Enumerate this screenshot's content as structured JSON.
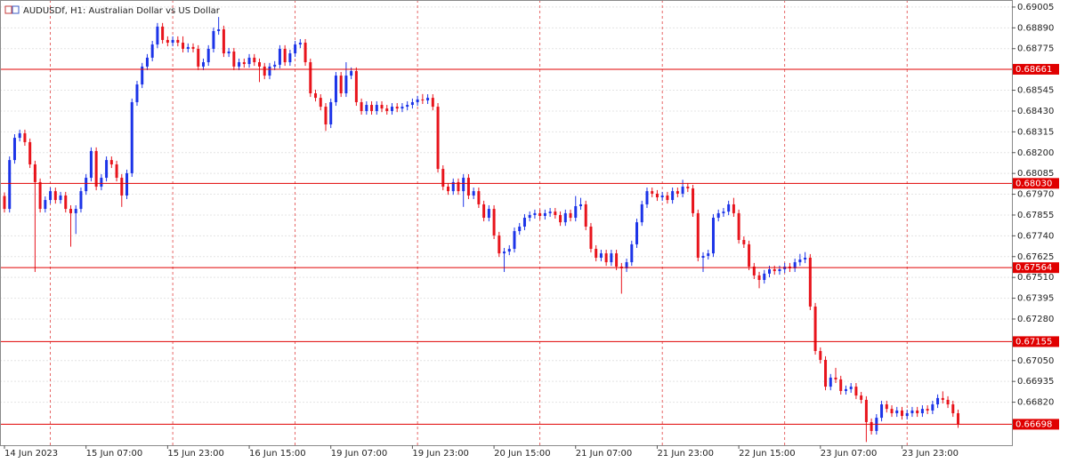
{
  "chart_data": {
    "type": "candlestick",
    "title": "AUDUSDf, H1:  Australian Dollar vs US Dollar",
    "up_color": "#1c34e8",
    "down_color": "#e8141c",
    "level_color": "#e00000",
    "grid": true,
    "ylim": [
      0.66587,
      0.69044
    ],
    "yticks": [
      0.69005,
      {
        "value": 0.6889,
        "label": "0.68890"
      },
      0.68775,
      0.68545,
      {
        "value": 0.6843,
        "label": "0.68430"
      },
      0.68315,
      {
        "value": 0.682,
        "label": "0.68200"
      },
      0.68085,
      {
        "value": 0.6797,
        "label": "0.67970"
      },
      0.67855,
      {
        "value": 0.6774,
        "label": "0.67740"
      },
      0.67625,
      {
        "value": 0.6751,
        "label": "0.67510"
      },
      0.67395,
      {
        "value": 0.6728,
        "label": "0.67280"
      },
      {
        "value": 0.6705,
        "label": "0.67050"
      },
      0.66935,
      {
        "value": 0.6682,
        "label": "0.66820"
      }
    ],
    "levels": [
      0.68661,
      {
        "value": 0.6803,
        "label": "0.68030"
      },
      0.67564,
      0.67155,
      0.66698
    ],
    "categories": [
      "14 Jun 2023",
      null,
      null,
      null,
      null,
      null,
      null,
      null,
      null,
      null,
      null,
      null,
      null,
      null,
      null,
      null,
      "15 Jun 07:00",
      null,
      null,
      null,
      null,
      null,
      null,
      null,
      null,
      null,
      null,
      null,
      null,
      null,
      null,
      null,
      "15 Jun 23:00",
      null,
      null,
      null,
      null,
      null,
      null,
      null,
      null,
      null,
      null,
      null,
      null,
      null,
      null,
      null,
      "16 Jun 15:00",
      null,
      null,
      null,
      null,
      null,
      null,
      null,
      null,
      null,
      null,
      null,
      null,
      null,
      null,
      null,
      "19 Jun 07:00",
      null,
      null,
      null,
      null,
      null,
      null,
      null,
      null,
      null,
      null,
      null,
      null,
      null,
      null,
      null,
      "19 Jun 23:00",
      null,
      null,
      null,
      null,
      null,
      null,
      null,
      null,
      null,
      null,
      null,
      null,
      null,
      null,
      null,
      "20 Jun 15:00",
      null,
      null,
      null,
      null,
      null,
      null,
      null,
      null,
      null,
      null,
      null,
      null,
      null,
      null,
      null,
      "21 Jun 07:00",
      null,
      null,
      null,
      null,
      null,
      null,
      null,
      null,
      null,
      null,
      null,
      null,
      null,
      null,
      null,
      "21 Jun 23:00",
      null,
      null,
      null,
      null,
      null,
      null,
      null,
      null,
      null,
      null,
      null,
      null,
      null,
      null,
      null,
      "22 Jun 15:00",
      null,
      null,
      null,
      null,
      null,
      null,
      null,
      null,
      null,
      null,
      null,
      null,
      null,
      null,
      null,
      "23 Jun 07:00",
      null,
      null,
      null,
      null,
      null,
      null,
      null,
      null,
      null,
      null,
      null,
      null,
      null,
      null,
      null,
      "23 Jun 23:00",
      null,
      null,
      null,
      null,
      null,
      null,
      null,
      null,
      null,
      null,
      null
    ],
    "ohlc": [
      [
        0.6796,
        0.6798,
        0.67869,
        0.67889
      ],
      [
        0.67889,
        0.68179,
        0.67869,
        0.68159
      ],
      [
        0.68159,
        0.68302,
        0.68139,
        0.68282
      ],
      [
        0.68282,
        0.68327,
        0.68262,
        0.68307
      ],
      [
        0.68307,
        0.68327,
        0.68238,
        0.68258
      ],
      [
        0.68258,
        0.68278,
        0.68115,
        0.68135
      ],
      [
        0.68135,
        0.68155,
        0.6754,
        0.68037
      ],
      [
        0.68037,
        0.68057,
        0.67869,
        0.67889
      ],
      [
        0.67889,
        0.67958,
        0.67869,
        0.67938
      ],
      [
        0.67938,
        0.68007,
        0.67918,
        0.67987
      ],
      [
        0.67987,
        0.68007,
        0.67918,
        0.67938
      ],
      [
        0.67938,
        0.67983,
        0.67918,
        0.67963
      ],
      [
        0.67963,
        0.67983,
        0.67869,
        0.67889
      ],
      [
        0.67889,
        0.67909,
        0.6768,
        0.67865
      ],
      [
        0.67865,
        0.67909,
        0.6775,
        0.67889
      ],
      [
        0.67889,
        0.68007,
        0.67869,
        0.67987
      ],
      [
        0.67987,
        0.68081,
        0.67967,
        0.68061
      ],
      [
        0.68061,
        0.68229,
        0.68041,
        0.68209
      ],
      [
        0.68209,
        0.68229,
        0.67992,
        0.68012
      ],
      [
        0.68012,
        0.68081,
        0.67992,
        0.68061
      ],
      [
        0.68061,
        0.68179,
        0.68041,
        0.68159
      ],
      [
        0.68159,
        0.68179,
        0.68115,
        0.68135
      ],
      [
        0.68135,
        0.68155,
        0.68041,
        0.68061
      ],
      [
        0.68061,
        0.68081,
        0.679,
        0.67963
      ],
      [
        0.67963,
        0.68106,
        0.67943,
        0.68086
      ],
      [
        0.68086,
        0.68499,
        0.68066,
        0.68479
      ],
      [
        0.68479,
        0.68597,
        0.68459,
        0.68577
      ],
      [
        0.68577,
        0.68696,
        0.68557,
        0.68676
      ],
      [
        0.68676,
        0.68745,
        0.68656,
        0.68725
      ],
      [
        0.68725,
        0.68818,
        0.68705,
        0.68798
      ],
      [
        0.68798,
        0.68917,
        0.68778,
        0.68897
      ],
      [
        0.68897,
        0.68917,
        0.68803,
        0.68823
      ],
      [
        0.68823,
        0.68843,
        0.68788,
        0.68808
      ],
      [
        0.68808,
        0.68843,
        0.68788,
        0.68823
      ],
      [
        0.68823,
        0.68843,
        0.68788,
        0.68808
      ],
      [
        0.68808,
        0.68843,
        0.68754,
        0.68774
      ],
      [
        0.68774,
        0.68804,
        0.68754,
        0.68784
      ],
      [
        0.68784,
        0.68804,
        0.68754,
        0.68774
      ],
      [
        0.68774,
        0.68794,
        0.68656,
        0.68676
      ],
      [
        0.68676,
        0.6872,
        0.68656,
        0.687
      ],
      [
        0.687,
        0.68794,
        0.6868,
        0.68774
      ],
      [
        0.68774,
        0.68892,
        0.68754,
        0.68872
      ],
      [
        0.68872,
        0.6895,
        0.68852,
        0.68882
      ],
      [
        0.68882,
        0.68902,
        0.68729,
        0.68749
      ],
      [
        0.68749,
        0.68779,
        0.68729,
        0.68759
      ],
      [
        0.68759,
        0.68779,
        0.68656,
        0.68676
      ],
      [
        0.68676,
        0.6872,
        0.68656,
        0.687
      ],
      [
        0.687,
        0.6872,
        0.6867,
        0.6869
      ],
      [
        0.6869,
        0.68745,
        0.6867,
        0.68725
      ],
      [
        0.68725,
        0.68745,
        0.6868,
        0.687
      ],
      [
        0.687,
        0.6872,
        0.6859,
        0.68676
      ],
      [
        0.68676,
        0.68696,
        0.68606,
        0.68626
      ],
      [
        0.68626,
        0.68696,
        0.68606,
        0.68676
      ],
      [
        0.68676,
        0.68706,
        0.68656,
        0.68686
      ],
      [
        0.68686,
        0.68794,
        0.68666,
        0.68774
      ],
      [
        0.68774,
        0.68794,
        0.6868,
        0.687
      ],
      [
        0.687,
        0.68769,
        0.6868,
        0.68749
      ],
      [
        0.68749,
        0.68818,
        0.68729,
        0.68798
      ],
      [
        0.68798,
        0.68828,
        0.68778,
        0.68808
      ],
      [
        0.68808,
        0.68828,
        0.6868,
        0.687
      ],
      [
        0.687,
        0.6872,
        0.68508,
        0.68528
      ],
      [
        0.68528,
        0.68548,
        0.68483,
        0.68503
      ],
      [
        0.68503,
        0.68523,
        0.68434,
        0.68454
      ],
      [
        0.68454,
        0.68474,
        0.6832,
        0.68356
      ],
      [
        0.68356,
        0.68499,
        0.68336,
        0.68479
      ],
      [
        0.68479,
        0.68646,
        0.68459,
        0.68626
      ],
      [
        0.68626,
        0.68646,
        0.68508,
        0.68528
      ],
      [
        0.68528,
        0.687,
        0.68508,
        0.68626
      ],
      [
        0.68626,
        0.68671,
        0.68606,
        0.68651
      ],
      [
        0.68651,
        0.68671,
        0.68459,
        0.68479
      ],
      [
        0.68479,
        0.68499,
        0.6841,
        0.6843
      ],
      [
        0.6843,
        0.68484,
        0.6841,
        0.68464
      ],
      [
        0.68464,
        0.68484,
        0.6841,
        0.6843
      ],
      [
        0.6843,
        0.68484,
        0.6841,
        0.68464
      ],
      [
        0.68464,
        0.68484,
        0.68424,
        0.68444
      ],
      [
        0.68444,
        0.68464,
        0.6841,
        0.6843
      ],
      [
        0.6843,
        0.68474,
        0.6841,
        0.68454
      ],
      [
        0.68454,
        0.68474,
        0.68424,
        0.68444
      ],
      [
        0.68444,
        0.68474,
        0.68424,
        0.68454
      ],
      [
        0.68454,
        0.68484,
        0.68434,
        0.68464
      ],
      [
        0.68464,
        0.68499,
        0.68444,
        0.68479
      ],
      [
        0.68479,
        0.68514,
        0.68459,
        0.68494
      ],
      [
        0.68494,
        0.68524,
        0.68469,
        0.68489
      ],
      [
        0.68489,
        0.68523,
        0.68469,
        0.68503
      ],
      [
        0.68503,
        0.68523,
        0.68434,
        0.68454
      ],
      [
        0.68454,
        0.68474,
        0.6809,
        0.6811
      ],
      [
        0.6811,
        0.6813,
        0.67992,
        0.68012
      ],
      [
        0.68012,
        0.68032,
        0.67967,
        0.67987
      ],
      [
        0.67987,
        0.68057,
        0.67967,
        0.68037
      ],
      [
        0.68037,
        0.68057,
        0.67967,
        0.67987
      ],
      [
        0.67987,
        0.68081,
        0.679,
        0.68061
      ],
      [
        0.68061,
        0.68081,
        0.67943,
        0.67963
      ],
      [
        0.67963,
        0.68007,
        0.67943,
        0.67987
      ],
      [
        0.67987,
        0.68007,
        0.67894,
        0.67914
      ],
      [
        0.67914,
        0.67934,
        0.6782,
        0.6784
      ],
      [
        0.6784,
        0.67909,
        0.6782,
        0.67889
      ],
      [
        0.67889,
        0.67909,
        0.67722,
        0.67742
      ],
      [
        0.67742,
        0.67762,
        0.67623,
        0.67643
      ],
      [
        0.67643,
        0.67673,
        0.6754,
        0.67653
      ],
      [
        0.67653,
        0.67688,
        0.67633,
        0.67668
      ],
      [
        0.67668,
        0.67786,
        0.67648,
        0.67766
      ],
      [
        0.67766,
        0.67811,
        0.67746,
        0.67791
      ],
      [
        0.67791,
        0.6786,
        0.67771,
        0.6784
      ],
      [
        0.6784,
        0.67875,
        0.6782,
        0.67855
      ],
      [
        0.67855,
        0.67885,
        0.67835,
        0.67865
      ],
      [
        0.67865,
        0.67885,
        0.6783,
        0.6785
      ],
      [
        0.6785,
        0.67885,
        0.6783,
        0.67865
      ],
      [
        0.67865,
        0.67894,
        0.67845,
        0.67874
      ],
      [
        0.67874,
        0.67894,
        0.67835,
        0.67855
      ],
      [
        0.67855,
        0.67875,
        0.67795,
        0.67815
      ],
      [
        0.67815,
        0.67885,
        0.67795,
        0.67865
      ],
      [
        0.67865,
        0.67885,
        0.6782,
        0.6784
      ],
      [
        0.6784,
        0.6796,
        0.6782,
        0.67904
      ],
      [
        0.67904,
        0.6795,
        0.67884,
        0.67914
      ],
      [
        0.67914,
        0.67934,
        0.67771,
        0.67791
      ],
      [
        0.67791,
        0.67811,
        0.67648,
        0.67668
      ],
      [
        0.67668,
        0.67688,
        0.67599,
        0.67619
      ],
      [
        0.67619,
        0.67663,
        0.67599,
        0.67643
      ],
      [
        0.67643,
        0.67663,
        0.67574,
        0.67594
      ],
      [
        0.67594,
        0.67663,
        0.67574,
        0.67643
      ],
      [
        0.67643,
        0.67663,
        0.6755,
        0.6757
      ],
      [
        0.6757,
        0.6759,
        0.6742,
        0.6756
      ],
      [
        0.6756,
        0.67614,
        0.6754,
        0.67594
      ],
      [
        0.67594,
        0.67713,
        0.67574,
        0.67693
      ],
      [
        0.67693,
        0.67835,
        0.67673,
        0.67815
      ],
      [
        0.67815,
        0.67934,
        0.67795,
        0.67914
      ],
      [
        0.67914,
        0.68007,
        0.67894,
        0.67987
      ],
      [
        0.67987,
        0.68007,
        0.67953,
        0.67973
      ],
      [
        0.67973,
        0.67993,
        0.67933,
        0.67953
      ],
      [
        0.67953,
        0.67983,
        0.67933,
        0.67963
      ],
      [
        0.67963,
        0.67983,
        0.67918,
        0.67938
      ],
      [
        0.67938,
        0.68007,
        0.67918,
        0.67987
      ],
      [
        0.67987,
        0.68007,
        0.67953,
        0.67973
      ],
      [
        0.67973,
        0.6805,
        0.67953,
        0.68012
      ],
      [
        0.68012,
        0.68032,
        0.67982,
        0.68002
      ],
      [
        0.68002,
        0.68022,
        0.67845,
        0.67865
      ],
      [
        0.67865,
        0.67885,
        0.67599,
        0.67619
      ],
      [
        0.67619,
        0.67649,
        0.6754,
        0.67629
      ],
      [
        0.67629,
        0.67663,
        0.67609,
        0.67643
      ],
      [
        0.67643,
        0.6786,
        0.67623,
        0.6784
      ],
      [
        0.6784,
        0.67885,
        0.6782,
        0.67865
      ],
      [
        0.67865,
        0.67894,
        0.67845,
        0.67874
      ],
      [
        0.67874,
        0.67934,
        0.67854,
        0.67914
      ],
      [
        0.67914,
        0.6795,
        0.67845,
        0.67865
      ],
      [
        0.67865,
        0.67885,
        0.67697,
        0.67717
      ],
      [
        0.67717,
        0.67737,
        0.67673,
        0.67693
      ],
      [
        0.67693,
        0.67713,
        0.6755,
        0.6757
      ],
      [
        0.6757,
        0.6759,
        0.67501,
        0.67521
      ],
      [
        0.67521,
        0.67541,
        0.6745,
        0.67496
      ],
      [
        0.67496,
        0.67551,
        0.67476,
        0.67531
      ],
      [
        0.67531,
        0.67575,
        0.67511,
        0.67555
      ],
      [
        0.67555,
        0.67575,
        0.67525,
        0.67545
      ],
      [
        0.67545,
        0.67575,
        0.67525,
        0.67555
      ],
      [
        0.67555,
        0.6759,
        0.67535,
        0.6757
      ],
      [
        0.6757,
        0.6759,
        0.6754,
        0.6756
      ],
      [
        0.6756,
        0.67614,
        0.6754,
        0.67594
      ],
      [
        0.67594,
        0.6764,
        0.67574,
        0.67609
      ],
      [
        0.67609,
        0.6765,
        0.67589,
        0.67619
      ],
      [
        0.67619,
        0.67639,
        0.67329,
        0.67349
      ],
      [
        0.67349,
        0.67369,
        0.67083,
        0.67103
      ],
      [
        0.67103,
        0.67123,
        0.67034,
        0.67054
      ],
      [
        0.67054,
        0.67074,
        0.66886,
        0.66906
      ],
      [
        0.66906,
        0.66976,
        0.66886,
        0.66956
      ],
      [
        0.66956,
        0.6701,
        0.66926,
        0.66946
      ],
      [
        0.66946,
        0.66966,
        0.66862,
        0.66882
      ],
      [
        0.66882,
        0.66912,
        0.66862,
        0.66892
      ],
      [
        0.66892,
        0.66926,
        0.66872,
        0.66906
      ],
      [
        0.66906,
        0.66926,
        0.66837,
        0.66857
      ],
      [
        0.66857,
        0.66877,
        0.66813,
        0.66833
      ],
      [
        0.66833,
        0.66853,
        0.666,
        0.6671
      ],
      [
        0.6671,
        0.6673,
        0.66641,
        0.66661
      ],
      [
        0.66661,
        0.66754,
        0.66641,
        0.66734
      ],
      [
        0.66734,
        0.66828,
        0.66714,
        0.66808
      ],
      [
        0.66808,
        0.66828,
        0.66763,
        0.66783
      ],
      [
        0.66783,
        0.66803,
        0.66739,
        0.66759
      ],
      [
        0.66759,
        0.66794,
        0.66739,
        0.66774
      ],
      [
        0.66774,
        0.66794,
        0.66724,
        0.66744
      ],
      [
        0.66744,
        0.66779,
        0.66724,
        0.66759
      ],
      [
        0.66759,
        0.66794,
        0.66739,
        0.66774
      ],
      [
        0.66774,
        0.66794,
        0.66739,
        0.66759
      ],
      [
        0.66759,
        0.66803,
        0.66739,
        0.66783
      ],
      [
        0.66783,
        0.66803,
        0.66754,
        0.66774
      ],
      [
        0.66774,
        0.66828,
        0.66754,
        0.66808
      ],
      [
        0.66808,
        0.66863,
        0.66788,
        0.66843
      ],
      [
        0.66843,
        0.6688,
        0.66813,
        0.66833
      ],
      [
        0.66833,
        0.66853,
        0.66788,
        0.66808
      ],
      [
        0.66808,
        0.66828,
        0.66739,
        0.66759
      ],
      [
        0.66759,
        0.66779,
        0.66678,
        0.66698
      ]
    ]
  }
}
